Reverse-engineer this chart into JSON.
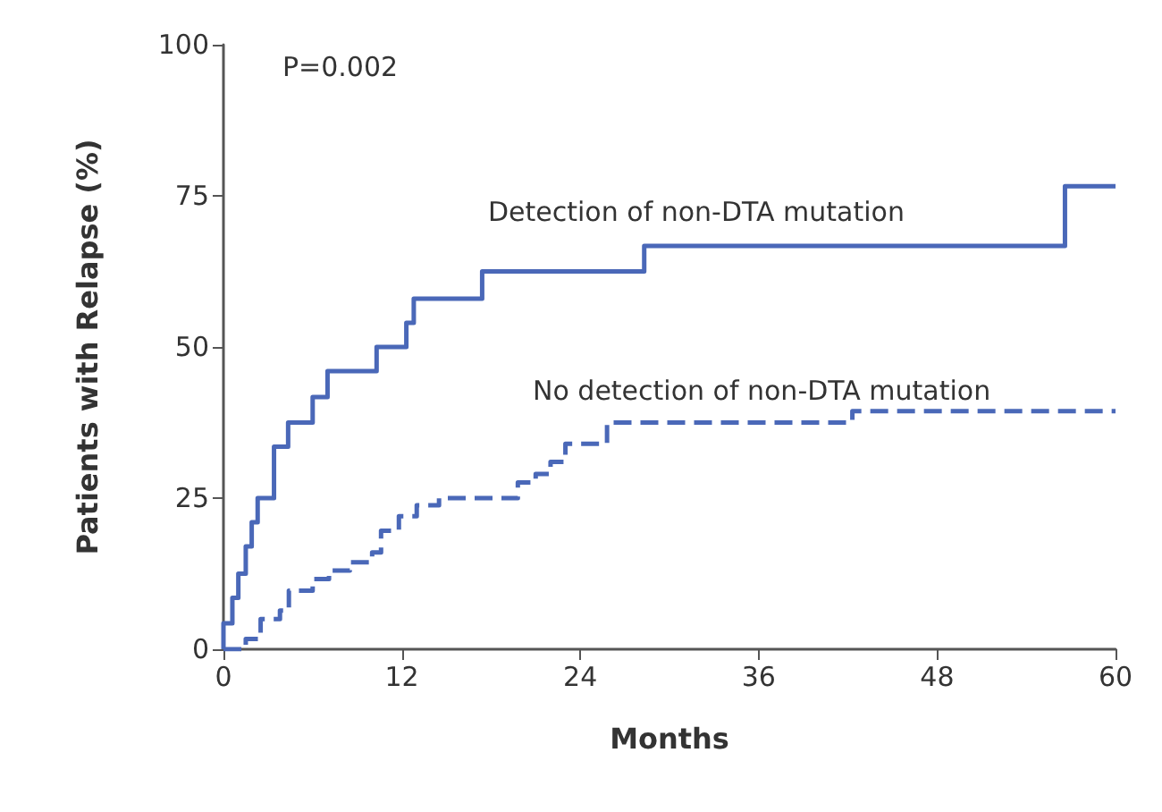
{
  "chart_data": {
    "type": "step",
    "xlabel": "Months",
    "ylabel": "Patients with Relapse (%)",
    "xlim": [
      0,
      60
    ],
    "xticks": [
      0,
      12,
      24,
      36,
      48,
      60
    ],
    "ylim": [
      0,
      100
    ],
    "yticks": [
      0,
      25,
      50,
      75,
      100
    ],
    "grid": false,
    "legend": false,
    "marker": "none",
    "series": [
      {
        "name": "Detection of non-DTA mutation",
        "color": "#4a68b8",
        "line_style": "solid",
        "x": [
          0,
          0,
          0.6,
          1.0,
          1.5,
          1.9,
          2.3,
          3.4,
          4.35,
          6.0,
          7.0,
          10.3,
          12.3,
          12.8,
          17.4,
          28.3,
          56.6,
          60
        ],
        "values": [
          0,
          4.3,
          8.5,
          12.5,
          17,
          21,
          25,
          33.5,
          37.5,
          41.7,
          46,
          50,
          54,
          58,
          62.5,
          66.7,
          76.6,
          76.6
        ]
      },
      {
        "name": "No detection of non-DTA mutation",
        "color": "#4a68b8",
        "line_style": "dashed",
        "x": [
          0,
          1.5,
          2.5,
          3.8,
          4.4,
          6.0,
          7.1,
          8.5,
          10.0,
          10.6,
          11.8,
          13.0,
          14.5,
          19.8,
          21.0,
          22.0,
          23.0,
          25.8,
          42.3,
          60
        ],
        "values": [
          0,
          1.7,
          5,
          6.4,
          9.7,
          11.6,
          13,
          14.4,
          16,
          19.6,
          22,
          23.8,
          25,
          27.6,
          29,
          31,
          34,
          37.5,
          39.4,
          39.4
        ]
      }
    ],
    "annotations": [
      "P=0.002"
    ]
  }
}
